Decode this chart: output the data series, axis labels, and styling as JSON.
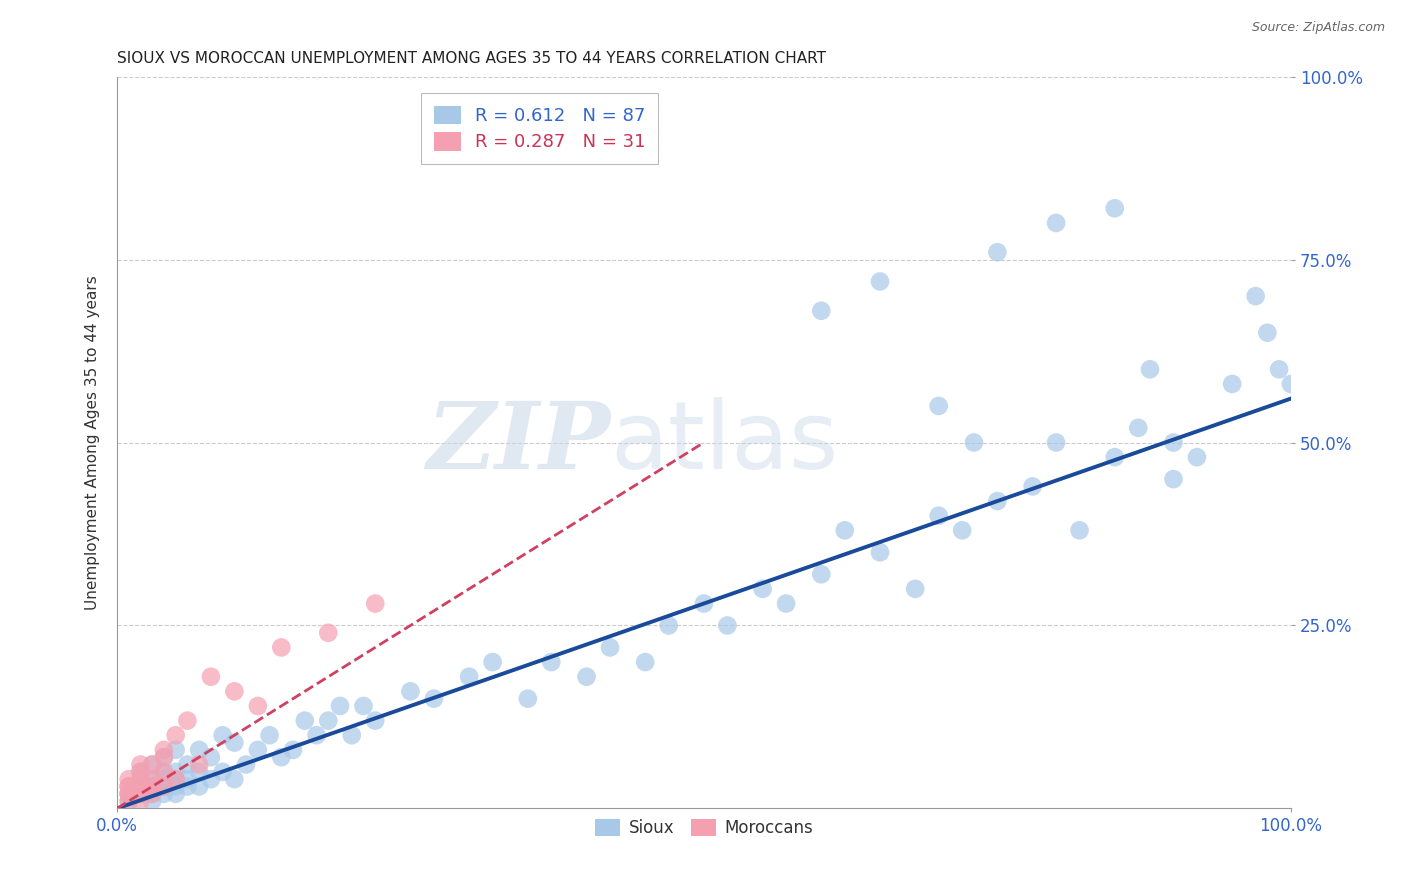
{
  "title": "SIOUX VS MOROCCAN UNEMPLOYMENT AMONG AGES 35 TO 44 YEARS CORRELATION CHART",
  "source": "Source: ZipAtlas.com",
  "ylabel": "Unemployment Among Ages 35 to 44 years",
  "xlim": [
    0,
    1.0
  ],
  "ylim": [
    0,
    1.0
  ],
  "xtick_labels": [
    "0.0%",
    "100.0%"
  ],
  "xtick_vals": [
    0.0,
    1.0
  ],
  "ytick_labels": [
    "25.0%",
    "50.0%",
    "75.0%",
    "100.0%"
  ],
  "ytick_vals": [
    0.25,
    0.5,
    0.75,
    1.0
  ],
  "sioux_color": "#a8c8e8",
  "moroccan_color": "#f4a0b0",
  "sioux_R": 0.612,
  "sioux_N": 87,
  "moroccan_R": 0.287,
  "moroccan_N": 31,
  "sioux_line_color": "#1a4a9a",
  "moroccan_line_color": "#d04060",
  "watermark_zip": "ZIP",
  "watermark_atlas": "atlas",
  "background_color": "#ffffff",
  "sioux_x": [
    0.01,
    0.01,
    0.02,
    0.02,
    0.02,
    0.02,
    0.03,
    0.03,
    0.03,
    0.03,
    0.03,
    0.04,
    0.04,
    0.04,
    0.04,
    0.04,
    0.05,
    0.05,
    0.05,
    0.05,
    0.05,
    0.06,
    0.06,
    0.06,
    0.07,
    0.07,
    0.07,
    0.08,
    0.08,
    0.09,
    0.09,
    0.1,
    0.1,
    0.11,
    0.12,
    0.13,
    0.14,
    0.15,
    0.16,
    0.17,
    0.18,
    0.19,
    0.2,
    0.21,
    0.22,
    0.25,
    0.27,
    0.3,
    0.32,
    0.35,
    0.37,
    0.4,
    0.42,
    0.45,
    0.47,
    0.5,
    0.52,
    0.55,
    0.57,
    0.6,
    0.62,
    0.65,
    0.68,
    0.7,
    0.72,
    0.73,
    0.75,
    0.78,
    0.8,
    0.82,
    0.85,
    0.87,
    0.88,
    0.9,
    0.92,
    0.95,
    0.97,
    0.98,
    0.99,
    1.0,
    0.6,
    0.65,
    0.7,
    0.75,
    0.8,
    0.85,
    0.9
  ],
  "sioux_y": [
    0.01,
    0.02,
    0.02,
    0.03,
    0.03,
    0.05,
    0.01,
    0.02,
    0.03,
    0.04,
    0.06,
    0.02,
    0.03,
    0.04,
    0.05,
    0.07,
    0.02,
    0.03,
    0.04,
    0.05,
    0.08,
    0.03,
    0.04,
    0.06,
    0.03,
    0.05,
    0.08,
    0.04,
    0.07,
    0.05,
    0.1,
    0.04,
    0.09,
    0.06,
    0.08,
    0.1,
    0.07,
    0.08,
    0.12,
    0.1,
    0.12,
    0.14,
    0.1,
    0.14,
    0.12,
    0.16,
    0.15,
    0.18,
    0.2,
    0.15,
    0.2,
    0.18,
    0.22,
    0.2,
    0.25,
    0.28,
    0.25,
    0.3,
    0.28,
    0.32,
    0.38,
    0.35,
    0.3,
    0.4,
    0.38,
    0.5,
    0.42,
    0.44,
    0.5,
    0.38,
    0.48,
    0.52,
    0.6,
    0.5,
    0.48,
    0.58,
    0.7,
    0.65,
    0.6,
    0.58,
    0.68,
    0.72,
    0.55,
    0.76,
    0.8,
    0.82,
    0.45
  ],
  "moroccan_x": [
    0.01,
    0.01,
    0.01,
    0.01,
    0.01,
    0.01,
    0.02,
    0.02,
    0.02,
    0.02,
    0.02,
    0.02,
    0.02,
    0.03,
    0.03,
    0.03,
    0.03,
    0.04,
    0.04,
    0.04,
    0.04,
    0.05,
    0.05,
    0.06,
    0.07,
    0.08,
    0.1,
    0.12,
    0.14,
    0.18,
    0.22
  ],
  "moroccan_y": [
    0.01,
    0.02,
    0.02,
    0.03,
    0.03,
    0.04,
    0.01,
    0.02,
    0.03,
    0.03,
    0.04,
    0.05,
    0.06,
    0.02,
    0.03,
    0.04,
    0.06,
    0.03,
    0.05,
    0.07,
    0.08,
    0.04,
    0.1,
    0.12,
    0.06,
    0.18,
    0.16,
    0.14,
    0.22,
    0.24,
    0.28
  ],
  "sioux_line_x0": 0.0,
  "sioux_line_y0": 0.0,
  "sioux_line_x1": 1.0,
  "sioux_line_y1": 0.56,
  "moroccan_line_x0": 0.0,
  "moroccan_line_y0": 0.0,
  "moroccan_line_x1": 0.5,
  "moroccan_line_y1": 0.5
}
